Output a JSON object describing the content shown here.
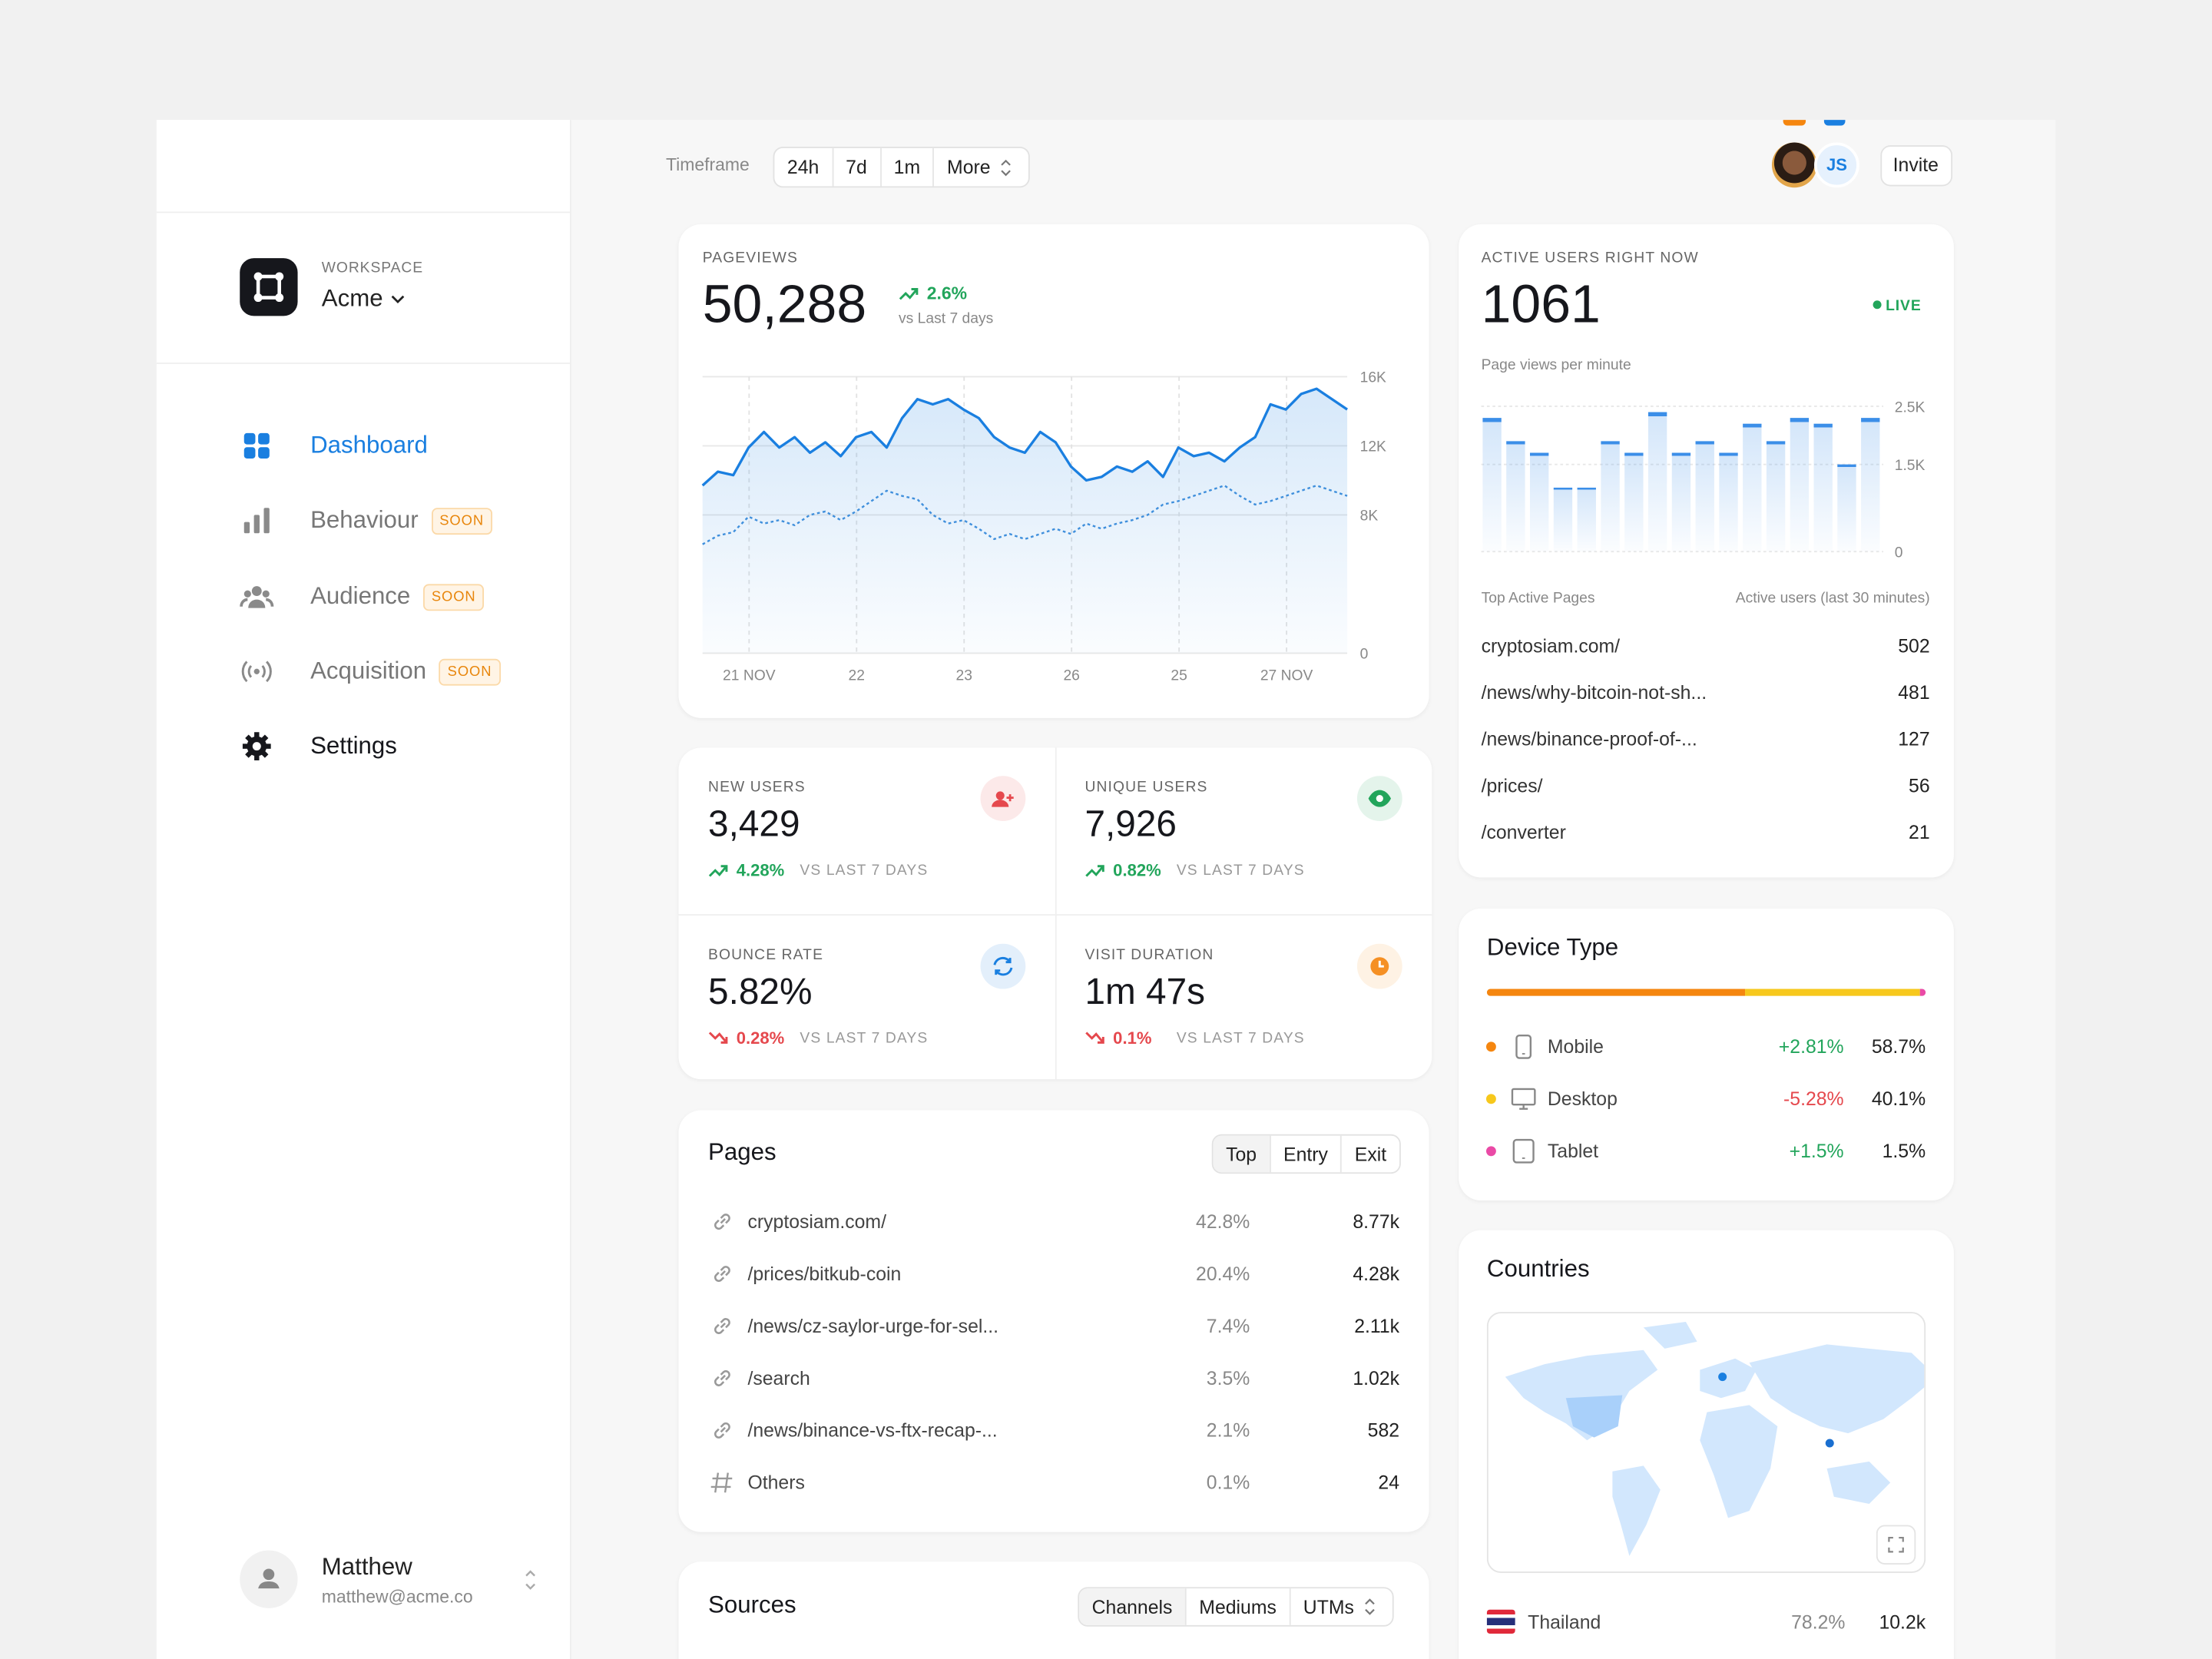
{
  "timeframe": {
    "label": "Timeframe",
    "options": [
      "24h",
      "7d",
      "1m",
      "More"
    ]
  },
  "header": {
    "avatar_initials": "JS",
    "invite": "Invite"
  },
  "sidebar": {
    "workspace_label": "WORKSPACE",
    "workspace": "Acme",
    "nav": [
      {
        "label": "Dashboard"
      },
      {
        "label": "Behaviour",
        "badge": "SOON"
      },
      {
        "label": "Audience",
        "badge": "SOON"
      },
      {
        "label": "Acquisition",
        "badge": "SOON"
      },
      {
        "label": "Settings"
      }
    ],
    "user": {
      "name": "Matthew",
      "email": "matthew@acme.co"
    }
  },
  "pageviews": {
    "title": "PAGEVIEWS",
    "total": "50,288",
    "change": "2.6%",
    "change_note": "vs Last 7 days",
    "chart": {
      "type": "line",
      "x_labels": [
        "21 NOV",
        "22",
        "23",
        "26",
        "25",
        "27 NOV"
      ],
      "series": [
        {
          "color": "#1a7fe0",
          "values": [
            9700,
            10500,
            10300,
            11900,
            12800,
            11900,
            12500,
            11600,
            12200,
            11400,
            12500,
            12800,
            11900,
            13600,
            14700,
            14400,
            14700,
            14100,
            13600,
            12500,
            11900,
            11600,
            12800,
            12200,
            10800,
            10000,
            10200,
            10800,
            10500,
            11100,
            10200,
            11900,
            11400,
            11600,
            11100,
            11900,
            12500,
            14400,
            14100,
            15000,
            15300,
            14700,
            14100
          ]
        },
        {
          "color": "#3f8fdc",
          "dashed": true,
          "values": [
            6300,
            6800,
            7000,
            7900,
            7500,
            7700,
            7400,
            8000,
            8200,
            7700,
            8200,
            8800,
            9400,
            9100,
            8900,
            8000,
            7500,
            7700,
            7200,
            6600,
            6900,
            6600,
            6900,
            7200,
            6900,
            7500,
            7200,
            7500,
            7700,
            8000,
            8600,
            8800,
            9100,
            9400,
            9700,
            9100,
            8600,
            8800,
            9100,
            9400,
            9700,
            9400,
            9100
          ]
        }
      ],
      "ylim": [
        0,
        16000
      ],
      "yticks": [
        0,
        {
          "value": 8000,
          "label": "8K"
        },
        {
          "value": 12000,
          "label": "12K"
        },
        {
          "value": 16000,
          "label": "16K"
        }
      ],
      "grid": true
    }
  },
  "active_users": {
    "title": "ACTIVE USERS RIGHT NOW",
    "count": "1061",
    "live": "LIVE",
    "subtitle": "Page views per minute",
    "chart": {
      "type": "bar",
      "color": "#3b8ee8",
      "values": [
        2300,
        1900,
        1700,
        1100,
        1100,
        1900,
        1700,
        2400,
        1700,
        1900,
        1700,
        2200,
        1900,
        2300,
        2200,
        1500,
        2300
      ],
      "ylim": [
        0,
        2500
      ],
      "yticks": [
        0,
        {
          "value": 1500,
          "label": "1.5K"
        },
        {
          "value": 2500,
          "label": "2.5K"
        }
      ],
      "grid": true
    },
    "table_header": [
      "Top Active Pages",
      "Active users (last 30 minutes)"
    ],
    "rows": [
      [
        "cryptosiam.com/",
        "502"
      ],
      [
        "/news/why-bitcoin-not-sh...",
        "481"
      ],
      [
        "/news/binance-proof-of-...",
        "127"
      ],
      [
        "/prices/",
        "56"
      ],
      [
        "/converter",
        "21"
      ]
    ]
  },
  "kpis": [
    {
      "label": "NEW USERS",
      "value": "3,429",
      "change": "4.28%",
      "note": "VS LAST 7 DAYS",
      "trend": "up",
      "color": "#e5484d"
    },
    {
      "label": "UNIQUE USERS",
      "value": "7,926",
      "change": "0.82%",
      "note": "VS LAST 7 DAYS",
      "trend": "up",
      "color": "#22a55b"
    },
    {
      "label": "BOUNCE RATE",
      "value": "5.82%",
      "change": "0.28%",
      "note": "VS LAST 7 DAYS",
      "trend": "down",
      "color": "#1a7fe0"
    },
    {
      "label": "VISIT DURATION",
      "value": "1m 47s",
      "change": "0.1%",
      "note": "VS LAST 7 DAYS",
      "trend": "down",
      "color": "#f59024"
    }
  ],
  "pages": {
    "title": "Pages",
    "tabs": [
      "Top",
      "Entry",
      "Exit"
    ],
    "rows": [
      [
        "cryptosiam.com/",
        "42.8%",
        "8.77k"
      ],
      [
        "/prices/bitkub-coin",
        "20.4%",
        "4.28k"
      ],
      [
        "/news/cz-saylor-urge-for-sel...",
        "7.4%",
        "2.11k"
      ],
      [
        "/search",
        "3.5%",
        "1.02k"
      ],
      [
        "/news/binance-vs-ftx-recap-...",
        "2.1%",
        "582"
      ],
      [
        "Others",
        "0.1%",
        "24"
      ]
    ]
  },
  "device_type": {
    "title": "Device Type",
    "values": [
      58.7,
      40.1,
      1.5
    ],
    "value_labels": [
      "58.7%",
      "40.1%",
      "1.5%"
    ],
    "colors": [
      "#f5860f",
      "#f7c81c",
      "#ea4aa6"
    ],
    "items": [
      {
        "name": "Mobile",
        "change": "+2.81%",
        "trend": "up"
      },
      {
        "name": "Desktop",
        "change": "-5.28%",
        "trend": "down"
      },
      {
        "name": "Tablet",
        "change": "+1.5%",
        "trend": "up"
      }
    ]
  },
  "countries": {
    "title": "Countries",
    "rows": [
      [
        "Thailand",
        "78.2%",
        "10.2k"
      ]
    ]
  },
  "sources": {
    "title": "Sources",
    "tabs": [
      "Channels",
      "Mediums",
      "UTMs"
    ]
  }
}
